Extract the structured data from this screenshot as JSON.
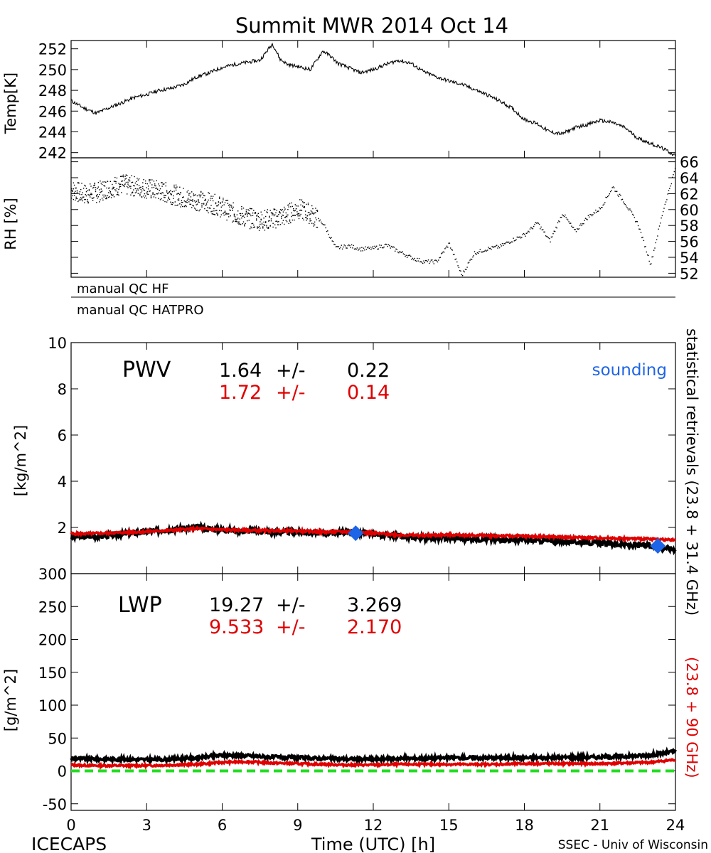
{
  "title": "Summit MWR 2014 Oct 14",
  "footer": {
    "left": "ICECAPS",
    "center": "Time (UTC) [h]",
    "right": "SSEC - Univ of Wisconsin"
  },
  "colors": {
    "black": "#000000",
    "red": "#e00000",
    "blue": "#1e64e6",
    "green": "#22dd22"
  },
  "qc": {
    "hf": "manual QC HF",
    "hatpro": "manual QC HATPRO"
  },
  "side_labels": {
    "black": "statistical retrievals (23.8 + 31.4 GHz)",
    "red": "(23.8 + 90 GHz)"
  },
  "chart_data": [
    {
      "type": "line",
      "panel": "temperature",
      "ylabel": "Temp[K]",
      "ylim": [
        241.5,
        252.8
      ],
      "yticks": [
        "252",
        "250",
        "248",
        "246",
        "244",
        "242"
      ],
      "x": [
        0,
        0.5,
        1,
        1.5,
        2,
        2.5,
        3,
        3.5,
        4,
        4.5,
        5,
        5.5,
        6,
        6.5,
        7,
        7.5,
        8,
        8.3,
        8.6,
        9,
        9.5,
        10,
        10.3,
        10.6,
        11,
        11.5,
        12,
        12.5,
        13,
        13.5,
        14,
        14.5,
        15,
        15.5,
        16,
        16.5,
        17,
        17.5,
        18,
        18.5,
        19,
        19.5,
        20,
        20.5,
        21,
        21.5,
        22,
        22.5,
        23,
        23.5,
        24
      ],
      "series": [
        {
          "values": [
            247,
            246.3,
            245.8,
            246.3,
            246.8,
            247.3,
            247.6,
            248,
            248.2,
            248.6,
            249.3,
            249.7,
            250.2,
            250.5,
            250.7,
            250.9,
            252.5,
            251,
            250.5,
            250.3,
            250,
            251.8,
            251.3,
            250.6,
            250.2,
            249.7,
            250,
            250.5,
            250.9,
            250.6,
            249.8,
            249.3,
            248.9,
            248.6,
            248.1,
            247.6,
            247,
            246.3,
            245.2,
            244.8,
            244,
            243.8,
            244.4,
            244.7,
            245.1,
            244.9,
            244.4,
            243.4,
            242.9,
            242.4,
            241.7
          ]
        }
      ]
    },
    {
      "type": "scatter",
      "panel": "relative-humidity",
      "ylabel": "RH [%]",
      "ylim": [
        51.5,
        66.5
      ],
      "yticks": [
        "66",
        "64",
        "62",
        "60",
        "58",
        "56",
        "54",
        "52"
      ],
      "x": [
        0,
        0.5,
        1,
        1.5,
        2,
        2.5,
        3,
        3.5,
        4,
        4.5,
        5,
        5.5,
        6,
        6.5,
        7,
        7.5,
        8,
        8.5,
        9,
        9.5,
        10,
        10.5,
        11,
        11.5,
        12,
        12.5,
        13,
        13.5,
        14,
        14.5,
        15,
        15.5,
        16,
        16.5,
        17,
        17.5,
        18,
        18.5,
        19,
        19.5,
        20,
        20.5,
        21,
        21.5,
        22,
        22.5,
        23,
        23.5,
        24
      ],
      "series": [
        {
          "values": [
            62.5,
            62,
            62.2,
            62.8,
            63.2,
            63,
            62.7,
            62.4,
            62,
            61.5,
            61.2,
            60.9,
            60.3,
            59.5,
            59,
            58.7,
            58.9,
            59.3,
            60.2,
            59.5,
            58.3,
            55.2,
            55.5,
            55.1,
            55.2,
            55.6,
            54.8,
            54,
            53.5,
            53.5,
            55.8,
            51.8,
            54.6,
            55.1,
            55.4,
            56.2,
            56.9,
            58.4,
            56.1,
            59.6,
            57.3,
            59.1,
            60.2,
            62.9,
            60.8,
            58.2,
            53.2,
            60,
            65.5
          ]
        }
      ]
    },
    {
      "type": "line",
      "panel": "pwv",
      "label": "PWV",
      "ylabel": "[kg/m^2]",
      "ylim": [
        0,
        10
      ],
      "yticks": [
        "10",
        "8",
        "6",
        "4",
        "2",
        "0"
      ],
      "legend": "sounding",
      "stats": [
        {
          "mean": "1.64",
          "pm": "+/-",
          "std": "0.22",
          "color": "#000000"
        },
        {
          "mean": "1.72",
          "pm": "+/-",
          "std": "0.14",
          "color": "#e00000"
        }
      ],
      "x": [
        0,
        1,
        2,
        3,
        4,
        5,
        6,
        7,
        8,
        9,
        10,
        11,
        12,
        13,
        14,
        15,
        16,
        17,
        18,
        19,
        20,
        21,
        22,
        23,
        24
      ],
      "series": [
        {
          "color": "#000000",
          "values": [
            1.6,
            1.62,
            1.7,
            1.82,
            1.92,
            2,
            1.9,
            1.85,
            1.82,
            1.8,
            1.75,
            1.8,
            1.72,
            1.6,
            1.55,
            1.55,
            1.5,
            1.48,
            1.45,
            1.42,
            1.38,
            1.32,
            1.25,
            1.2,
            1.05
          ]
        },
        {
          "color": "#e00000",
          "values": [
            1.72,
            1.74,
            1.78,
            1.82,
            1.88,
            1.95,
            1.9,
            1.88,
            1.86,
            1.85,
            1.8,
            1.82,
            1.75,
            1.68,
            1.65,
            1.68,
            1.66,
            1.64,
            1.62,
            1.6,
            1.57,
            1.55,
            1.52,
            1.5,
            1.45
          ]
        }
      ],
      "soundings": [
        {
          "x": 11.3,
          "y": 1.75
        },
        {
          "x": 23.3,
          "y": 1.2
        }
      ]
    },
    {
      "type": "line",
      "panel": "lwp",
      "label": "LWP",
      "ylabel": "[g/m^2]",
      "ylim": [
        -60,
        300
      ],
      "yticks": [
        "300",
        "250",
        "200",
        "150",
        "100",
        "50",
        "0",
        "-50"
      ],
      "xlabel": "Time (UTC) [h]",
      "xlim": [
        0,
        24
      ],
      "xticks": [
        "0",
        "3",
        "6",
        "9",
        "12",
        "15",
        "18",
        "21",
        "24"
      ],
      "stats": [
        {
          "mean": "19.27",
          "pm": "+/-",
          "std": "3.269",
          "color": "#000000"
        },
        {
          "mean": "9.533",
          "pm": "+/-",
          "std": "2.170",
          "color": "#e00000"
        }
      ],
      "x": [
        0,
        1,
        2,
        3,
        4,
        5,
        6,
        7,
        8,
        9,
        10,
        11,
        12,
        13,
        14,
        15,
        16,
        17,
        18,
        19,
        20,
        21,
        22,
        23,
        24
      ],
      "series": [
        {
          "color": "#000000",
          "values": [
            19,
            18,
            18,
            17,
            18,
            20,
            24,
            23,
            21,
            20,
            19,
            18,
            18,
            19,
            19,
            20,
            20,
            20,
            20,
            20,
            21,
            21,
            22,
            24,
            30
          ]
        },
        {
          "color": "#e00000",
          "values": [
            9,
            8,
            8,
            8,
            9,
            10,
            13,
            14,
            12,
            11,
            10,
            9,
            9,
            10,
            10,
            10,
            10,
            10,
            11,
            11,
            11,
            11,
            12,
            13,
            17
          ]
        }
      ],
      "zero_line": 0
    }
  ]
}
